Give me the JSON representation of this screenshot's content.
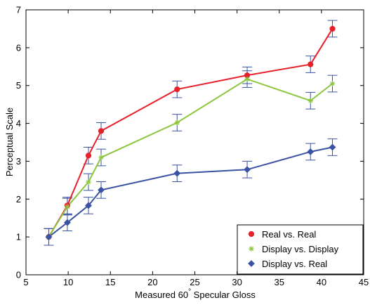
{
  "chart_data": {
    "type": "line",
    "title": "",
    "xlabel": "Measured 60",
    "xlabel_superscript": "°",
    "xlabel_suffix": " Specular Gloss",
    "ylabel": "Perceptual Scale",
    "xlim": [
      5,
      45
    ],
    "ylim": [
      0,
      7
    ],
    "xticks": [
      5,
      10,
      15,
      20,
      25,
      30,
      35,
      40,
      45
    ],
    "yticks": [
      0,
      1,
      2,
      3,
      4,
      5,
      6,
      7
    ],
    "grid": false,
    "legend_position": "bottom-right",
    "x": [
      7.7,
      9.9,
      12.4,
      13.9,
      22.9,
      31.2,
      38.7,
      41.3
    ],
    "series": [
      {
        "name": "Real vs. Real",
        "color": "#e8202a",
        "marker": "circle",
        "values": [
          1.0,
          1.83,
          3.15,
          3.8,
          4.9,
          5.27,
          5.56,
          6.5
        ],
        "errors": [
          0.22,
          0.22,
          0.22,
          0.22,
          0.22,
          0.22,
          0.22,
          0.22
        ]
      },
      {
        "name": "Display vs. Display",
        "color": "#8cc63f",
        "marker": "star",
        "values": [
          1.0,
          1.8,
          2.45,
          3.1,
          4.02,
          5.17,
          4.6,
          5.05
        ],
        "errors": [
          0.22,
          0.22,
          0.22,
          0.22,
          0.22,
          0.22,
          0.22,
          0.22
        ]
      },
      {
        "name": "Display vs. Real",
        "color": "#3a52a3",
        "marker": "diamond",
        "values": [
          1.0,
          1.38,
          1.83,
          2.24,
          2.68,
          2.78,
          3.25,
          3.37
        ],
        "errors": [
          0.22,
          0.22,
          0.22,
          0.22,
          0.22,
          0.22,
          0.22,
          0.22
        ]
      }
    ],
    "errorbar_color": "#3a52a3"
  }
}
